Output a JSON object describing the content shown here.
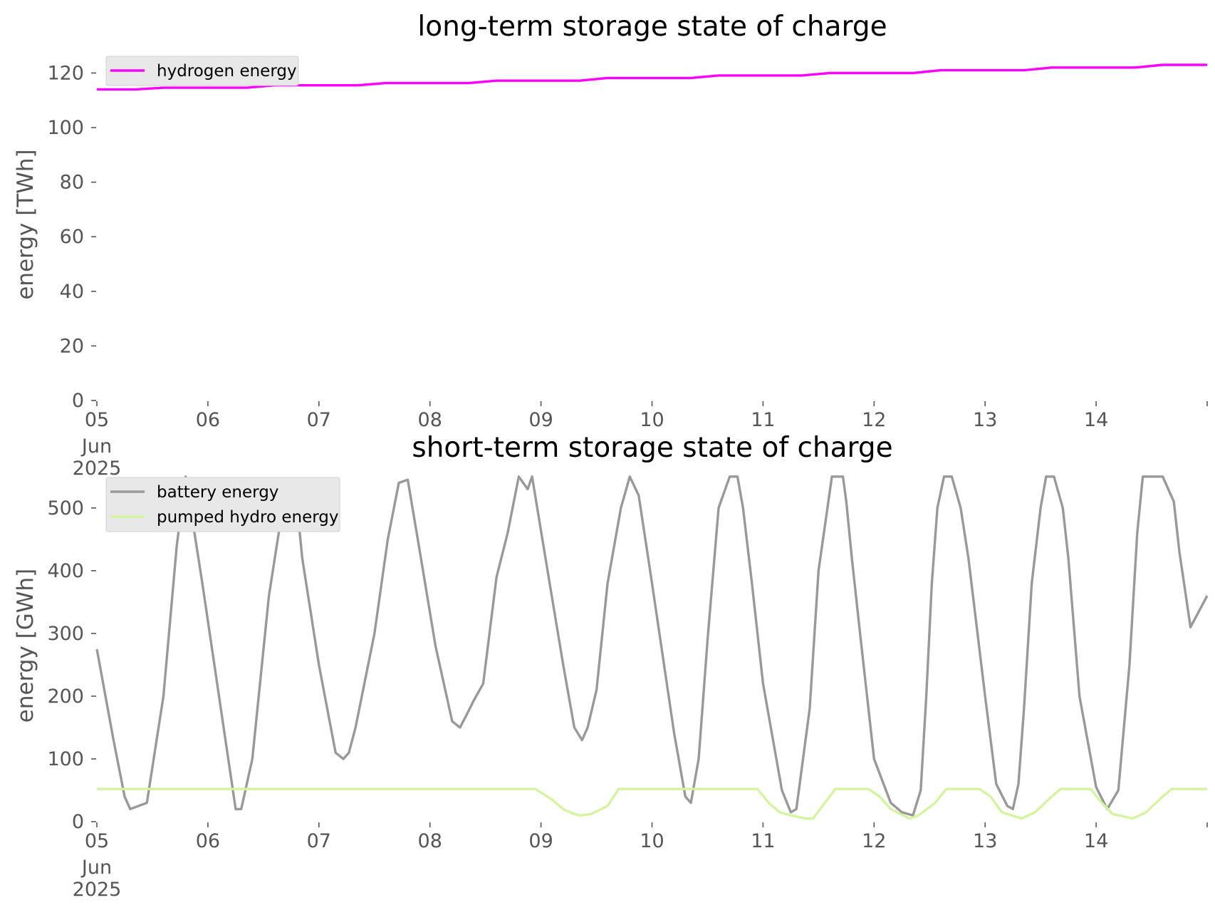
{
  "chart_data": [
    {
      "type": "line",
      "title": "long-term storage state of charge",
      "ylabel": "energy [TWh]",
      "xlabel": "",
      "xlim": [
        "2025-06-05 00:00",
        "2025-06-15 00:00"
      ],
      "ylim": [
        0,
        129
      ],
      "yticks": [
        0,
        20,
        40,
        60,
        80,
        100,
        120
      ],
      "xticks": [
        "05",
        "06",
        "07",
        "08",
        "09",
        "10",
        "11",
        "12",
        "13",
        "14"
      ],
      "xtick_sub": [
        "Jun",
        "2025"
      ],
      "legend_position": "upper left",
      "grid": false,
      "series": [
        {
          "name": "hydrogen energy",
          "color": "#ff00ff",
          "x_days": [
            0,
            0.35,
            0.6,
            1.35,
            1.6,
            2.35,
            2.6,
            3.35,
            3.6,
            4.35,
            4.6,
            5.35,
            5.6,
            6.35,
            6.6,
            7.35,
            7.6,
            8.35,
            8.6,
            9.35,
            9.6,
            10.0
          ],
          "values": [
            114,
            114,
            114.6,
            114.6,
            115.5,
            115.5,
            116.3,
            116.3,
            117.2,
            117.2,
            118.2,
            118.2,
            119.1,
            119.1,
            120,
            120,
            121,
            121,
            122,
            122,
            123,
            123
          ]
        }
      ]
    },
    {
      "type": "line",
      "title": "short-term storage state of charge",
      "ylabel": "energy [GWh]",
      "xlabel": "",
      "xlim": [
        "2025-06-05 00:00",
        "2025-06-15 00:00"
      ],
      "ylim": [
        0,
        560
      ],
      "yticks": [
        0,
        100,
        200,
        300,
        400,
        500
      ],
      "xticks": [
        "05",
        "06",
        "07",
        "08",
        "09",
        "10",
        "11",
        "12",
        "13",
        "14"
      ],
      "xtick_sub": [
        "Jun",
        "2025"
      ],
      "legend_position": "upper left",
      "grid": false,
      "series": [
        {
          "name": "battery energy",
          "color": "#999999",
          "x_days": [
            0,
            0.15,
            0.25,
            0.3,
            0.45,
            0.6,
            0.72,
            0.8,
            0.95,
            1.1,
            1.2,
            1.25,
            1.3,
            1.4,
            1.55,
            1.7,
            1.78,
            1.85,
            2.0,
            2.15,
            2.22,
            2.27,
            2.33,
            2.5,
            2.62,
            2.72,
            2.8,
            2.9,
            3.05,
            3.2,
            3.27,
            3.33,
            3.4,
            3.48,
            3.6,
            3.7,
            3.8,
            3.88,
            3.92,
            4.05,
            4.2,
            4.3,
            4.37,
            4.42,
            4.5,
            4.6,
            4.72,
            4.8,
            4.88,
            5.0,
            5.2,
            5.25,
            5.3,
            5.35,
            5.42,
            5.5,
            5.6,
            5.7,
            5.77,
            5.82,
            5.9,
            6.0,
            6.12,
            6.17,
            6.25,
            6.3,
            6.42,
            6.5,
            6.62,
            6.72,
            6.75,
            6.8,
            6.88,
            7.0,
            7.15,
            7.25,
            7.35,
            7.42,
            7.47,
            7.52,
            7.57,
            7.63,
            7.7,
            7.78,
            7.85,
            8.0,
            8.1,
            8.2,
            8.25,
            8.3,
            8.35,
            8.42,
            8.5,
            8.55,
            8.62,
            8.7,
            8.75,
            8.85,
            9.0,
            9.1,
            9.2,
            9.3,
            9.37,
            9.42,
            9.5,
            9.6,
            9.7,
            9.75,
            9.85,
            10.0
          ],
          "values": [
            275,
            130,
            40,
            20,
            30,
            200,
            440,
            550,
            380,
            200,
            80,
            20,
            20,
            100,
            360,
            530,
            545,
            420,
            250,
            110,
            100,
            110,
            150,
            300,
            450,
            540,
            545,
            440,
            280,
            160,
            150,
            170,
            195,
            220,
            390,
            460,
            550,
            530,
            550,
            410,
            250,
            150,
            130,
            150,
            210,
            380,
            500,
            550,
            520,
            380,
            140,
            90,
            40,
            30,
            100,
            290,
            500,
            550,
            550,
            500,
            380,
            220,
            100,
            50,
            15,
            20,
            180,
            400,
            550,
            550,
            510,
            420,
            290,
            100,
            30,
            15,
            10,
            50,
            200,
            380,
            500,
            550,
            550,
            500,
            420,
            200,
            60,
            25,
            20,
            60,
            180,
            380,
            500,
            550,
            550,
            500,
            420,
            200,
            55,
            20,
            50,
            250,
            460,
            550,
            550,
            550,
            510,
            430,
            310,
            360
          ]
        },
        {
          "name": "pumped hydro energy",
          "color": "#d4f5a0",
          "x_days": [
            0,
            3.95,
            4.1,
            4.2,
            4.3,
            4.35,
            4.45,
            4.6,
            4.7,
            5.0,
            5.95,
            6.05,
            6.15,
            6.25,
            6.38,
            6.45,
            6.6,
            6.65,
            6.95,
            7.05,
            7.15,
            7.32,
            7.4,
            7.55,
            7.65,
            7.95,
            8.05,
            8.15,
            8.33,
            8.45,
            8.6,
            8.68,
            8.95,
            9.05,
            9.15,
            9.33,
            9.45,
            9.6,
            9.68,
            10.0
          ],
          "values": [
            52,
            52,
            35,
            20,
            12,
            10,
            12,
            25,
            52,
            52,
            52,
            30,
            15,
            10,
            5,
            5,
            40,
            52,
            52,
            40,
            20,
            5,
            10,
            30,
            52,
            52,
            40,
            15,
            5,
            15,
            40,
            52,
            52,
            30,
            12,
            5,
            15,
            40,
            52,
            52
          ]
        }
      ]
    }
  ]
}
